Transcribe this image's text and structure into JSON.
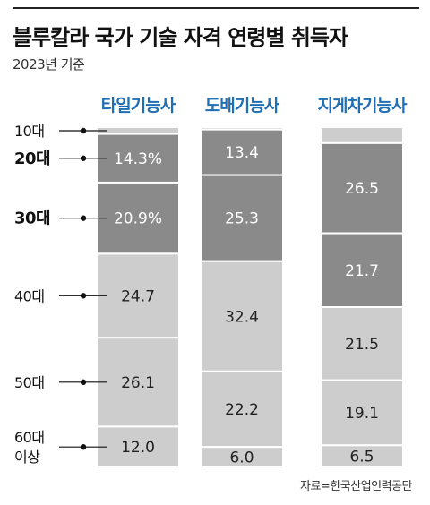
{
  "title": "블루칼라 국가 기술 자격 연령별 취득자",
  "subtitle": "2023년 기준",
  "source": "자료=한국산업인력공단",
  "colors": {
    "dark_segment": "#8a8a8a",
    "light_segment": "#cdcdcd",
    "category_title": "#1f6fb5",
    "text": "#222222"
  },
  "chart_data": {
    "type": "bar",
    "stacked": true,
    "percent_scale": true,
    "categories": [
      "타일기능사",
      "도배기능사",
      "지게차기능사"
    ],
    "age_groups": [
      "10대",
      "20대",
      "30대",
      "40대",
      "50대",
      "60대 이상"
    ],
    "age_group_lines": [
      [
        "10대"
      ],
      [
        "20대"
      ],
      [
        "30대"
      ],
      [
        "40대"
      ],
      [
        "50대"
      ],
      [
        "60대",
        "이상"
      ]
    ],
    "bold_age_groups": [
      "20대",
      "30대"
    ],
    "highlighted_age_groups": [
      "20대",
      "30대"
    ],
    "series": [
      {
        "name": "10대",
        "values": [
          null,
          null,
          null
        ],
        "labels": [
          "",
          "",
          ""
        ]
      },
      {
        "name": "20대",
        "values": [
          14.3,
          13.4,
          26.5
        ],
        "labels": [
          "14.3%",
          "13.4",
          "26.5"
        ]
      },
      {
        "name": "30대",
        "values": [
          20.9,
          25.3,
          21.7
        ],
        "labels": [
          "20.9%",
          "25.3",
          "21.7"
        ]
      },
      {
        "name": "40대",
        "values": [
          24.7,
          32.4,
          21.5
        ],
        "labels": [
          "24.7",
          "32.4",
          "21.5"
        ]
      },
      {
        "name": "50대",
        "values": [
          26.1,
          22.2,
          19.1
        ],
        "labels": [
          "26.1",
          "22.2",
          "19.1"
        ]
      },
      {
        "name": "60대 이상",
        "values": [
          12.0,
          6.0,
          6.5
        ],
        "labels": [
          "12.0",
          "6.0",
          "6.5"
        ]
      }
    ]
  }
}
